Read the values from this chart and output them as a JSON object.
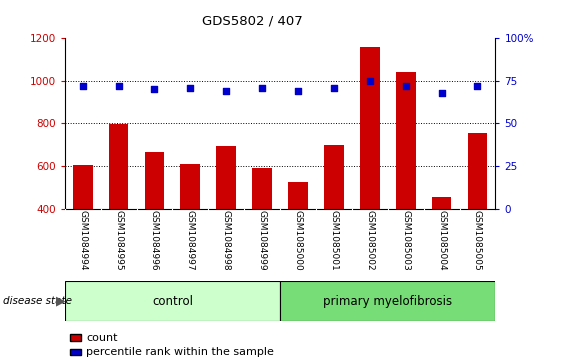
{
  "title": "GDS5802 / 407",
  "samples": [
    "GSM1084994",
    "GSM1084995",
    "GSM1084996",
    "GSM1084997",
    "GSM1084998",
    "GSM1084999",
    "GSM1085000",
    "GSM1085001",
    "GSM1085002",
    "GSM1085003",
    "GSM1085004",
    "GSM1085005"
  ],
  "counts": [
    605,
    795,
    665,
    610,
    695,
    590,
    525,
    700,
    1160,
    1040,
    455,
    755
  ],
  "percentiles": [
    72,
    72,
    70,
    71,
    69,
    71,
    69,
    71,
    75,
    72,
    68,
    72
  ],
  "bar_color": "#cc0000",
  "dot_color": "#0000cc",
  "ylim_left": [
    400,
    1200
  ],
  "ylim_right": [
    0,
    100
  ],
  "yticks_left": [
    400,
    600,
    800,
    1000,
    1200
  ],
  "yticks_right": [
    0,
    25,
    50,
    75,
    100
  ],
  "ytick_right_labels": [
    "0",
    "25",
    "50",
    "75",
    "100%"
  ],
  "grid_values": [
    600,
    800,
    1000
  ],
  "control_count": 6,
  "primary_count": 6,
  "control_label": "control",
  "primary_label": "primary myelofibrosis",
  "disease_state_label": "disease state",
  "legend_count_label": "count",
  "legend_pct_label": "percentile rank within the sample",
  "control_color": "#ccffcc",
  "primary_color": "#77dd77",
  "xlabel_area_color": "#d0d0d0",
  "bar_bottom": 400
}
